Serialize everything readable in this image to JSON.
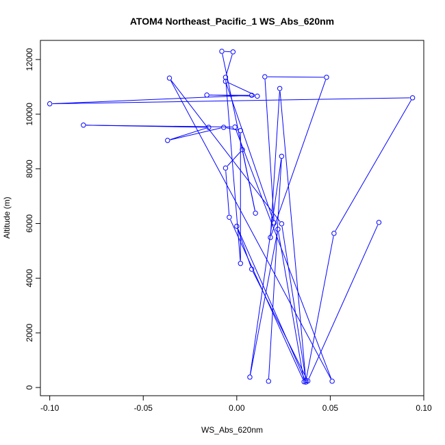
{
  "chart_data": {
    "type": "scatter",
    "title": "ATOM4 Northeast_Pacific_1 WS_Abs_620nm",
    "xlabel": "WS_Abs_620nm",
    "ylabel": "Altitude (m)",
    "xlim": [
      -0.105,
      0.1
    ],
    "ylim": [
      -300,
      12700
    ],
    "x_ticks": [
      -0.1,
      -0.05,
      0.0,
      0.05,
      0.1
    ],
    "x_tick_labels": [
      "-0.10",
      "-0.05",
      "0.00",
      "0.05",
      "0.10"
    ],
    "y_ticks": [
      0,
      2000,
      4000,
      6000,
      8000,
      10000,
      12000
    ],
    "y_tick_labels": [
      "0",
      "2000",
      "4000",
      "6000",
      "8000",
      "10000",
      "12000"
    ],
    "grid": false,
    "series": [
      {
        "color": "#0000ff",
        "marker": "open-circle",
        "connected": true,
        "points": [
          {
            "x": 0.017,
            "y": 230
          },
          {
            "x": 0.024,
            "y": 8460
          },
          {
            "x": 0.007,
            "y": 380
          },
          {
            "x": 0.022,
            "y": 5790
          },
          {
            "x": 0.036,
            "y": 210
          },
          {
            "x": -0.004,
            "y": 6230
          },
          {
            "x": -0.006,
            "y": 8030
          },
          {
            "x": 0.003,
            "y": 8700
          },
          {
            "x": 0.01,
            "y": 6380
          },
          {
            "x": -0.008,
            "y": 12300
          },
          {
            "x": -0.002,
            "y": 12280
          },
          {
            "x": -0.006,
            "y": 11350
          },
          {
            "x": 0.002,
            "y": 4540
          },
          {
            "x": 0.002,
            "y": 9400
          },
          {
            "x": -0.007,
            "y": 9520
          },
          {
            "x": -0.037,
            "y": 9040
          },
          {
            "x": -0.015,
            "y": 9520
          },
          {
            "x": -0.082,
            "y": 9600
          },
          {
            "x": -0.001,
            "y": 9530
          },
          {
            "x": 0.051,
            "y": 230
          },
          {
            "x": -0.036,
            "y": 11320
          },
          {
            "x": 0.024,
            "y": 5990
          },
          {
            "x": 0.037,
            "y": 260
          },
          {
            "x": 0.052,
            "y": 5640
          },
          {
            "x": 0.094,
            "y": 10600
          },
          {
            "x": -0.1,
            "y": 10380
          },
          {
            "x": 0.008,
            "y": 10690
          },
          {
            "x": -0.016,
            "y": 10700
          },
          {
            "x": 0.011,
            "y": 10660
          },
          {
            "x": -0.006,
            "y": 11200
          },
          {
            "x": 0.02,
            "y": 6020
          },
          {
            "x": 0.015,
            "y": 11370
          },
          {
            "x": 0.048,
            "y": 11350
          },
          {
            "x": 0.018,
            "y": 5490
          },
          {
            "x": 0.023,
            "y": 10940
          },
          {
            "x": 0.037,
            "y": 200
          },
          {
            "x": -0.0,
            "y": 5900
          },
          {
            "x": 0.008,
            "y": 4330
          },
          {
            "x": 0.038,
            "y": 240
          },
          {
            "x": 0.076,
            "y": 6040
          }
        ]
      }
    ]
  }
}
